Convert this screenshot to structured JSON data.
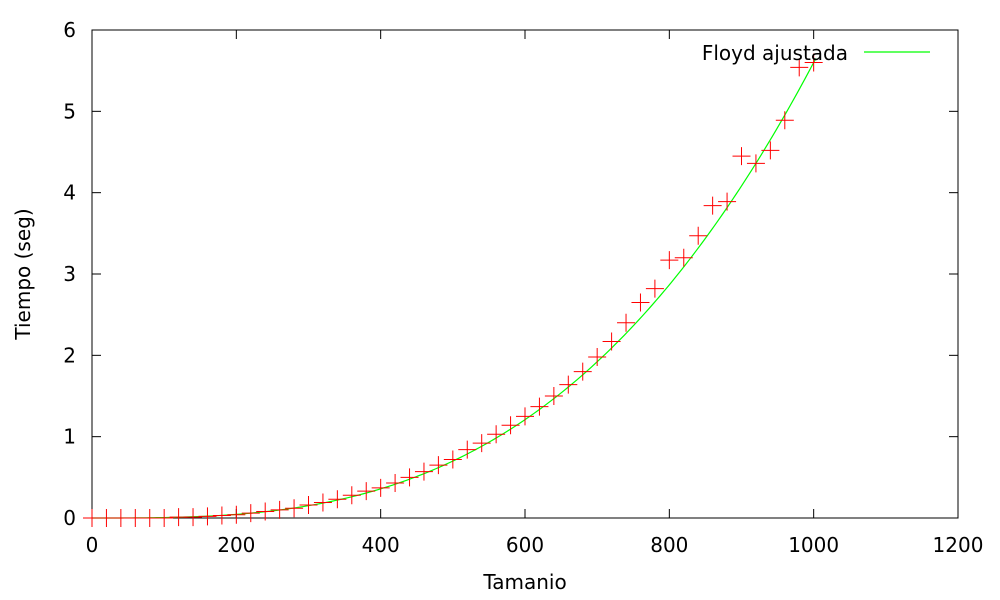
{
  "chart_data": {
    "type": "scatter",
    "title": "",
    "xlabel": "Tamanio",
    "ylabel": "Tiempo (seg)",
    "xlim": [
      0,
      1200
    ],
    "ylim": [
      0,
      6
    ],
    "x_ticks": [
      0,
      200,
      400,
      600,
      800,
      1000,
      1200
    ],
    "y_ticks": [
      0,
      1,
      2,
      3,
      4,
      5,
      6
    ],
    "x_tick_labels": [
      "0",
      "200",
      "400",
      "600",
      "800",
      "1000",
      "1200"
    ],
    "y_tick_labels": [
      "0",
      "1",
      "2",
      "3",
      "4",
      "5",
      "6"
    ],
    "grid": false,
    "legend_position": "top-right",
    "series": [
      {
        "name": "",
        "kind": "points",
        "marker": "plus",
        "color": "#ff0000",
        "x": [
          0,
          20,
          40,
          60,
          80,
          100,
          120,
          140,
          160,
          180,
          200,
          220,
          240,
          260,
          280,
          300,
          320,
          340,
          360,
          380,
          400,
          420,
          440,
          460,
          480,
          500,
          520,
          540,
          560,
          580,
          600,
          620,
          640,
          660,
          680,
          700,
          720,
          740,
          760,
          780,
          800,
          820,
          840,
          860,
          880,
          900,
          920,
          940,
          960,
          980,
          1000
        ],
        "y": [
          0,
          0,
          0,
          0,
          0,
          0,
          0.01,
          0.01,
          0.02,
          0.03,
          0.04,
          0.06,
          0.08,
          0.1,
          0.12,
          0.16,
          0.19,
          0.23,
          0.28,
          0.33,
          0.37,
          0.43,
          0.5,
          0.57,
          0.65,
          0.72,
          0.84,
          0.92,
          1.03,
          1.14,
          1.25,
          1.37,
          1.5,
          1.64,
          1.8,
          1.98,
          2.17,
          2.4,
          2.65,
          2.82,
          3.17,
          3.2,
          3.47,
          3.84,
          3.89,
          4.45,
          4.36,
          4.52,
          4.89,
          5.54,
          5.6
        ]
      },
      {
        "name": "Floyd ajustada",
        "kind": "line",
        "color": "#00ff00",
        "fit": "cubic",
        "coefficients": {
          "a3": 5.6e-09,
          "a2": 0,
          "a1": 0,
          "a0": 0
        },
        "x_range": [
          0,
          1003
        ]
      }
    ]
  }
}
